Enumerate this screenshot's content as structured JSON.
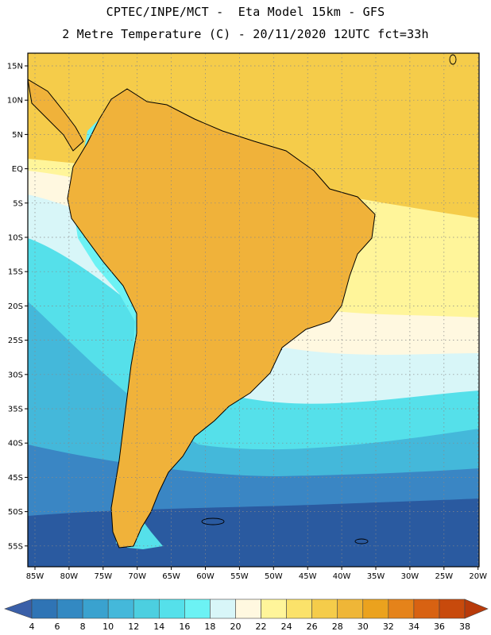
{
  "header": {
    "line1": "CPTEC/INPE/MCT -  Eta Model 15km - GFS",
    "line2": "2 Metre Temperature (C) - 20/11/2020 12UTC fct=33h"
  },
  "axes": {
    "lat_labels": [
      "15N",
      "10N",
      "5N",
      "EQ",
      "5S",
      "10S",
      "15S",
      "20S",
      "25S",
      "30S",
      "35S",
      "40S",
      "45S",
      "50S",
      "55S"
    ],
    "lon_labels": [
      "85W",
      "80W",
      "75W",
      "70W",
      "65W",
      "60W",
      "55W",
      "50W",
      "45W",
      "40W",
      "35W",
      "30W",
      "25W",
      "20W"
    ]
  },
  "colorbar": {
    "labels": [
      "4",
      "6",
      "8",
      "10",
      "12",
      "14",
      "16",
      "18",
      "20",
      "22",
      "24",
      "26",
      "28",
      "30",
      "32",
      "34",
      "36",
      "38"
    ],
    "colors": [
      "#3a5fa8",
      "#2f74b5",
      "#3389c2",
      "#3aa2cf",
      "#44b8da",
      "#4ccfe0",
      "#55e0ea",
      "#6cf2f4",
      "#d8f6f8",
      "#fff8e0",
      "#fff59a",
      "#fbe26a",
      "#f5cc4a",
      "#efb637",
      "#eba21e",
      "#e5831a",
      "#d86212",
      "#c84a0c",
      "#b83a0a"
    ]
  },
  "palette": {
    "ocean_far_south": "#2a5aa0",
    "ocean_south": "#3a86c4",
    "ocean_mid": "#44b8da",
    "ocean_cyan": "#55e0ea",
    "ocean_pale": "#d8f6f8",
    "ocean_cream": "#fff8e0",
    "ocean_yellow": "#fff59a",
    "ocean_warm": "#f5cc4a",
    "land_warm": "#f0b23a",
    "land_hot": "#d8641a",
    "andes_cold": "#6cf2f4"
  }
}
